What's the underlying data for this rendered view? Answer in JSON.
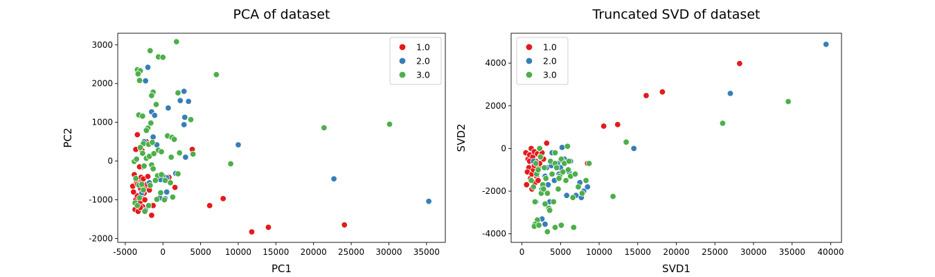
{
  "figure": {
    "background": "#ffffff"
  },
  "colors": {
    "1.0": "#e41a1c",
    "2.0": "#377eb8",
    "3.0": "#4daf4a"
  },
  "chart_data": [
    {
      "type": "scatter",
      "title": "PCA of dataset",
      "xlabel": "PC1",
      "ylabel": "PC2",
      "xlim": [
        -6000,
        37500
      ],
      "ylim": [
        -2100,
        3300
      ],
      "xticks": [
        -5000,
        0,
        5000,
        10000,
        15000,
        20000,
        25000,
        30000,
        35000
      ],
      "yticks": [
        -2000,
        -1000,
        0,
        1000,
        2000,
        3000
      ],
      "grid": false,
      "legend": {
        "position": "top-right",
        "entries": [
          "1.0",
          "2.0",
          "3.0"
        ]
      },
      "series": [
        {
          "name": "1.0",
          "color": "#e41a1c",
          "points": [
            [
              -4000,
              -650
            ],
            [
              -3800,
              -350
            ],
            [
              -3600,
              300
            ],
            [
              -3400,
              680
            ],
            [
              -3200,
              -500
            ],
            [
              -3000,
              -700
            ],
            [
              -3600,
              -1000
            ],
            [
              -3400,
              -900
            ],
            [
              -3200,
              -1150
            ],
            [
              -3000,
              -1050
            ],
            [
              -2800,
              -950
            ],
            [
              -3700,
              -1250
            ],
            [
              -3300,
              -1300
            ],
            [
              -2700,
              -1180
            ],
            [
              -2500,
              -830
            ],
            [
              -2300,
              -700
            ],
            [
              -2100,
              -600
            ],
            [
              -3900,
              -800
            ],
            [
              -3500,
              -550
            ],
            [
              -2900,
              -420
            ],
            [
              -2600,
              -460
            ],
            [
              -2400,
              -1000
            ],
            [
              -1800,
              -750
            ],
            [
              -1500,
              -1400
            ],
            [
              -1300,
              -1150
            ],
            [
              -2200,
              500
            ],
            [
              -2700,
              -150
            ],
            [
              -3100,
              -150
            ],
            [
              -2800,
              280
            ],
            [
              800,
              -420
            ],
            [
              1600,
              -680
            ],
            [
              3900,
              300
            ],
            [
              6200,
              -1150
            ],
            [
              8000,
              -970
            ],
            [
              11800,
              -1830
            ],
            [
              14000,
              -1710
            ],
            [
              24100,
              -1650
            ],
            [
              -2000,
              -400
            ],
            [
              -3400,
              -600
            ],
            [
              -3000,
              -1200
            ]
          ]
        },
        {
          "name": "2.0",
          "color": "#377eb8",
          "points": [
            [
              -2500,
              500
            ],
            [
              -2300,
              2070
            ],
            [
              -2000,
              2420
            ],
            [
              -3000,
              1170
            ],
            [
              -1500,
              1270
            ],
            [
              -1300,
              620
            ],
            [
              -800,
              420
            ],
            [
              -1100,
              1180
            ],
            [
              700,
              1370
            ],
            [
              2300,
              1560
            ],
            [
              2800,
              1800
            ],
            [
              3400,
              1540
            ],
            [
              2900,
              1130
            ],
            [
              2800,
              940
            ],
            [
              3000,
              100
            ],
            [
              500,
              -430
            ],
            [
              0,
              -380
            ],
            [
              -300,
              -480
            ],
            [
              500,
              -800
            ],
            [
              -400,
              -950
            ],
            [
              1700,
              -320
            ],
            [
              -2800,
              -820
            ],
            [
              -2300,
              -1270
            ],
            [
              -1800,
              -560
            ],
            [
              10000,
              420
            ],
            [
              22700,
              -460
            ],
            [
              35300,
              -1040
            ],
            [
              300,
              -970
            ]
          ]
        },
        {
          "name": "3.0",
          "color": "#4daf4a",
          "points": [
            [
              -1700,
              2850
            ],
            [
              1800,
              3080
            ],
            [
              -600,
              2690
            ],
            [
              0,
              2680
            ],
            [
              -3400,
              2360
            ],
            [
              -3000,
              2330
            ],
            [
              -3300,
              2250
            ],
            [
              -3100,
              2080
            ],
            [
              7100,
              2230
            ],
            [
              2000,
              1760
            ],
            [
              -1300,
              1780
            ],
            [
              -1500,
              1690
            ],
            [
              -900,
              1460
            ],
            [
              -3200,
              1190
            ],
            [
              -2700,
              1160
            ],
            [
              -1600,
              980
            ],
            [
              -2000,
              850
            ],
            [
              -2200,
              790
            ],
            [
              3700,
              1070
            ],
            [
              600,
              650
            ],
            [
              1200,
              610
            ],
            [
              1500,
              560
            ],
            [
              -2600,
              450
            ],
            [
              -1900,
              430
            ],
            [
              -1400,
              480
            ],
            [
              -3000,
              350
            ],
            [
              -2700,
              200
            ],
            [
              -2200,
              70
            ],
            [
              -1800,
              120
            ],
            [
              -1200,
              190
            ],
            [
              -600,
              280
            ],
            [
              -200,
              240
            ],
            [
              1100,
              100
            ],
            [
              2200,
              210
            ],
            [
              4000,
              180
            ],
            [
              -3800,
              -10
            ],
            [
              -3500,
              50
            ],
            [
              -2500,
              -130
            ],
            [
              -1500,
              -100
            ],
            [
              -1300,
              -200
            ],
            [
              -700,
              -380
            ],
            [
              -200,
              -350
            ],
            [
              300,
              -500
            ],
            [
              1000,
              -560
            ],
            [
              2000,
              -330
            ],
            [
              -3600,
              -450
            ],
            [
              -3200,
              -620
            ],
            [
              -2600,
              -750
            ],
            [
              -1700,
              -630
            ],
            [
              -1000,
              -500
            ],
            [
              -300,
              -820
            ],
            [
              200,
              -1000
            ],
            [
              1300,
              -930
            ],
            [
              -3700,
              -1080
            ],
            [
              -3100,
              -950
            ],
            [
              -2400,
              -1300
            ],
            [
              -1900,
              -1150
            ],
            [
              -800,
              -990
            ],
            [
              21400,
              860
            ],
            [
              30100,
              950
            ],
            [
              9000,
              -70
            ],
            [
              -3400,
              -1150
            ],
            [
              -2800,
              -600
            ]
          ]
        }
      ]
    },
    {
      "type": "scatter",
      "title": "Truncated SVD of dataset",
      "xlabel": "SVD1",
      "ylabel": "SVD2",
      "xlim": [
        -1400,
        41400
      ],
      "ylim": [
        -4400,
        5400
      ],
      "xticks": [
        0,
        5000,
        10000,
        15000,
        20000,
        25000,
        30000,
        35000,
        40000
      ],
      "yticks": [
        -4000,
        -2000,
        0,
        2000,
        4000
      ],
      "grid": false,
      "legend": {
        "position": "top-left",
        "entries": [
          "1.0",
          "2.0",
          "3.0"
        ]
      },
      "series": [
        {
          "name": "1.0",
          "color": "#e41a1c",
          "points": [
            [
              500,
              -200
            ],
            [
              800,
              -500
            ],
            [
              1000,
              -300
            ],
            [
              1200,
              0
            ],
            [
              1400,
              -400
            ],
            [
              1600,
              -150
            ],
            [
              1800,
              -600
            ],
            [
              2000,
              -250
            ],
            [
              2200,
              -800
            ],
            [
              2400,
              -350
            ],
            [
              2600,
              -200
            ],
            [
              900,
              -900
            ],
            [
              700,
              -1100
            ],
            [
              1100,
              -1400
            ],
            [
              1300,
              -1200
            ],
            [
              1500,
              -1000
            ],
            [
              1700,
              -1600
            ],
            [
              1900,
              -1300
            ],
            [
              600,
              -1700
            ],
            [
              2100,
              -1500
            ],
            [
              2300,
              -700
            ],
            [
              3200,
              250
            ],
            [
              1300,
              -1900
            ],
            [
              10600,
              1050
            ],
            [
              12400,
              1120
            ],
            [
              16100,
              2480
            ],
            [
              18200,
              2650
            ],
            [
              28200,
              3980
            ],
            [
              8500,
              -700
            ],
            [
              2800,
              -500
            ],
            [
              1000,
              -600
            ],
            [
              1600,
              -800
            ]
          ]
        },
        {
          "name": "2.0",
          "color": "#377eb8",
          "points": [
            [
              1500,
              -600
            ],
            [
              1800,
              -2500
            ],
            [
              2000,
              -1100
            ],
            [
              2600,
              -1900
            ],
            [
              3000,
              -1300
            ],
            [
              3200,
              -900
            ],
            [
              3400,
              -1700
            ],
            [
              3600,
              -2500
            ],
            [
              3900,
              -200
            ],
            [
              4200,
              -1500
            ],
            [
              4600,
              -700
            ],
            [
              5000,
              -900
            ],
            [
              5200,
              50
            ],
            [
              5500,
              -500
            ],
            [
              5800,
              -2200
            ],
            [
              6100,
              -1100
            ],
            [
              6300,
              -600
            ],
            [
              7000,
              -2200
            ],
            [
              7500,
              -1600
            ],
            [
              8000,
              -2000
            ],
            [
              7700,
              -2300
            ],
            [
              8500,
              -1800
            ],
            [
              2600,
              -3300
            ],
            [
              3000,
              -3550
            ],
            [
              5300,
              -600
            ],
            [
              14500,
              0
            ],
            [
              27000,
              2580
            ],
            [
              39400,
              4880
            ],
            [
              4800,
              -1200
            ],
            [
              3800,
              -800
            ]
          ]
        },
        {
          "name": "3.0",
          "color": "#4daf4a",
          "points": [
            [
              1200,
              -1500
            ],
            [
              1500,
              -1800
            ],
            [
              1700,
              -2500
            ],
            [
              1900,
              -1200
            ],
            [
              2100,
              -1000
            ],
            [
              2300,
              0
            ],
            [
              2500,
              -2100
            ],
            [
              2700,
              -1700
            ],
            [
              2900,
              -900
            ],
            [
              3100,
              -1400
            ],
            [
              3300,
              -2100
            ],
            [
              3500,
              -2800
            ],
            [
              3700,
              -600
            ],
            [
              3900,
              -1200
            ],
            [
              4100,
              -2500
            ],
            [
              4300,
              -700
            ],
            [
              4500,
              -900
            ],
            [
              4700,
              -1900
            ],
            [
              4900,
              -1300
            ],
            [
              5100,
              -500
            ],
            [
              5300,
              -1100
            ],
            [
              5500,
              -700
            ],
            [
              5700,
              -1500
            ],
            [
              5900,
              100
            ],
            [
              6100,
              -600
            ],
            [
              6300,
              -1300
            ],
            [
              6600,
              -2300
            ],
            [
              6900,
              -1200
            ],
            [
              7300,
              -1800
            ],
            [
              7800,
              -2100
            ],
            [
              8300,
              -1500
            ],
            [
              8700,
              -700
            ],
            [
              2000,
              -3350
            ],
            [
              1700,
              -3550
            ],
            [
              1600,
              -3650
            ],
            [
              2200,
              -3600
            ],
            [
              3300,
              -3900
            ],
            [
              4300,
              -3700
            ],
            [
              5100,
              -3600
            ],
            [
              6700,
              -3700
            ],
            [
              3600,
              -2900
            ],
            [
              4800,
              -1400
            ],
            [
              1800,
              -700
            ],
            [
              2400,
              -400
            ],
            [
              2800,
              -1900
            ],
            [
              11800,
              -2250
            ],
            [
              13500,
              300
            ],
            [
              26000,
              1180
            ],
            [
              34500,
              2200
            ],
            [
              4300,
              -200
            ],
            [
              6000,
              -1000
            ],
            [
              3000,
              -2600
            ]
          ]
        }
      ]
    }
  ]
}
